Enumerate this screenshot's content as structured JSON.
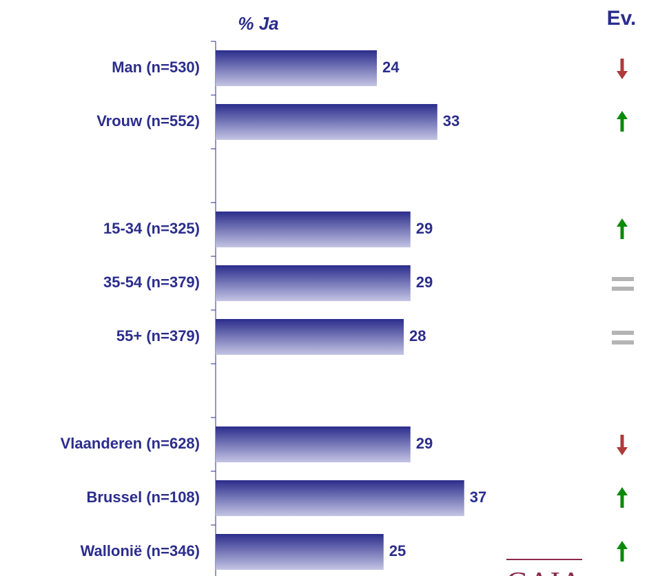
{
  "chart_data": {
    "type": "bar",
    "orientation": "horizontal",
    "x_label": "% Ja",
    "trend_title": "Ev.",
    "categories": [
      "Man (n=530)",
      "Vrouw (n=552)",
      null,
      "15-34 (n=325)",
      "35-54 (n=379)",
      "55+ (n=379)",
      null,
      "Vlaanderen (n=628)",
      "Brussel (n=108)",
      "Wallonië (n=346)"
    ],
    "values": [
      24,
      33,
      null,
      29,
      29,
      28,
      null,
      29,
      37,
      25
    ],
    "trend": [
      "down",
      "up",
      null,
      "up",
      "equal",
      "equal",
      null,
      "down",
      "up",
      "up"
    ],
    "trend_colors": {
      "down": "#b03a3a",
      "up": "#0a8a0a",
      "equal": "#b4b4b4"
    },
    "color": [
      "#2b2d8c",
      "#c4c4e4"
    ],
    "xlim": [
      0,
      64
    ],
    "logo": "GAIA"
  }
}
